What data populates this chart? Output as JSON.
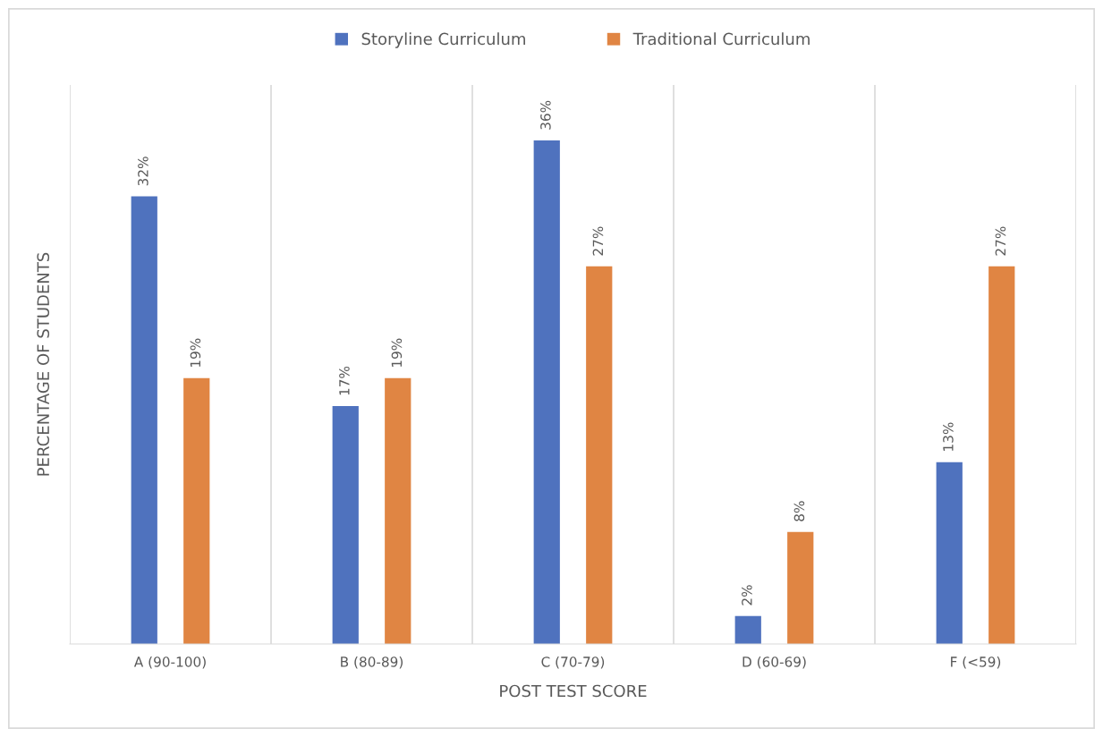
{
  "chart_data": {
    "type": "bar",
    "xlabel": "POST TEST SCORE",
    "ylabel": "PERCENTAGE OF STUDENTS",
    "categories": [
      "A (90-100)",
      "B (80-89)",
      "C (70-79)",
      "D (60-69)",
      "F (<59)"
    ],
    "series": [
      {
        "name": "Storyline Curriculum",
        "color": "#4f72be",
        "values": [
          32,
          17,
          36,
          2,
          13
        ],
        "value_labels": [
          "32%",
          "17%",
          "36%",
          "2%",
          "13%"
        ]
      },
      {
        "name": "Traditional Curriculum",
        "color": "#e08543",
        "values": [
          19,
          19,
          27,
          8,
          27
        ],
        "value_labels": [
          "19%",
          "19%",
          "27%",
          "8%",
          "27%"
        ]
      }
    ],
    "grid": "x",
    "legend": "top"
  }
}
